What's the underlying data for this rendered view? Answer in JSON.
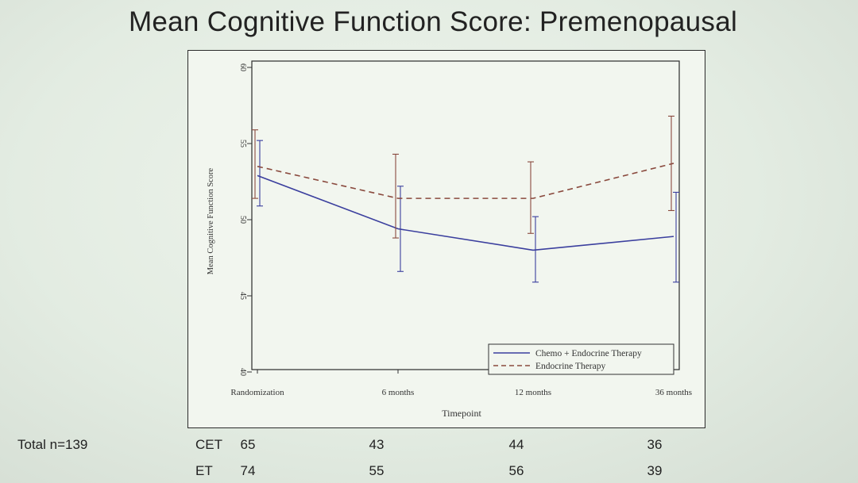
{
  "slide": {
    "title": "Mean Cognitive Function Score: Premenopausal"
  },
  "chart_data": {
    "type": "line",
    "title": "Mean Cognitive Function Score: Premenopausal",
    "xlabel": "Timepoint",
    "ylabel": "Mean Cognitive Function Score",
    "categories": [
      "Randomization",
      "6 months",
      "12 months",
      "36 months"
    ],
    "ylim": [
      40,
      60
    ],
    "yticks": [
      "40",
      "45",
      "50",
      "55",
      "60"
    ],
    "grid": false,
    "legend_position": "bottom-right",
    "series": [
      {
        "name": "Chemo + Endocrine Therapy",
        "color": "#3b3f9e",
        "line_style": "solid",
        "values": [
          52.9,
          49.4,
          48.0,
          48.9
        ],
        "lower": [
          50.9,
          46.6,
          45.9,
          45.9
        ],
        "upper": [
          55.2,
          52.2,
          50.2,
          51.8
        ]
      },
      {
        "name": "Endocrine Therapy",
        "color": "#8a4a3e",
        "line_style": "dashed",
        "values": [
          53.5,
          51.4,
          51.4,
          53.7
        ],
        "lower": [
          51.4,
          48.8,
          49.1,
          50.6
        ],
        "upper": [
          55.9,
          54.3,
          53.8,
          56.8
        ]
      }
    ]
  },
  "sample_sizes": {
    "total_label": "Total n=139",
    "rows": [
      {
        "label": "CET",
        "values": [
          "65",
          "43",
          "44",
          "36"
        ]
      },
      {
        "label": "ET",
        "values": [
          "74",
          "55",
          "56",
          "39"
        ]
      }
    ]
  }
}
